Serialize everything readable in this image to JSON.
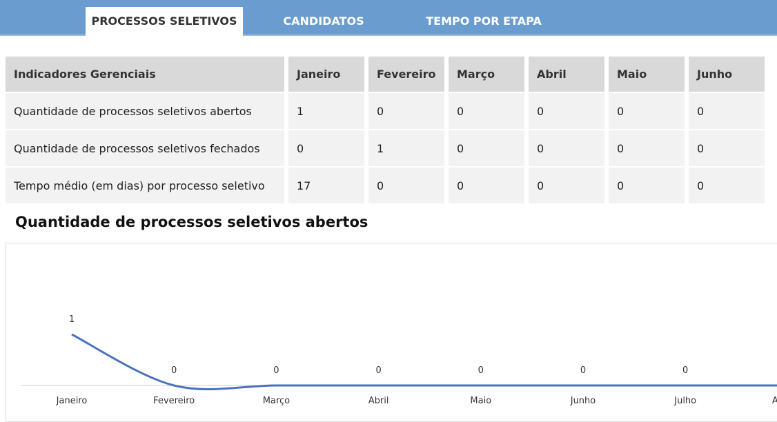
{
  "tabs": [
    "PROCESSOS SELETIVOS",
    "CANDIDATOS",
    "TEMPO POR ETAPA"
  ],
  "table": {
    "header": [
      "Indicadores Gerenciais",
      "Janeiro",
      "Fevereiro",
      "Março",
      "Abril",
      "Maio",
      "Junho"
    ],
    "rows": [
      [
        "Quantidade de processos seletivos abertos",
        1,
        0,
        0,
        0,
        0,
        0
      ],
      [
        "Quantidade de processos seletivos fechados",
        0,
        1,
        0,
        0,
        0,
        0
      ],
      [
        "Tempo médio (em dias) por processo seletivo",
        17,
        0,
        0,
        0,
        0,
        0
      ]
    ]
  },
  "chart_data": {
    "type": "line",
    "title": "Quantidade de processos seletivos abertos",
    "categories": [
      "Janeiro",
      "Fevereiro",
      "Março",
      "Abril",
      "Maio",
      "Junho",
      "Julho",
      "Agosto"
    ],
    "values": [
      1,
      0,
      0,
      0,
      0,
      0,
      0,
      0
    ],
    "color": "#4a72be"
  }
}
